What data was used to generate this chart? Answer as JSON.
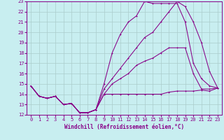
{
  "xlabel": "Windchill (Refroidissement éolien,°C)",
  "background_color": "#c8eef0",
  "grid_color": "#aacccc",
  "line_color": "#880088",
  "xlim": [
    -0.5,
    23.5
  ],
  "ylim": [
    12,
    23
  ],
  "xticks": [
    0,
    1,
    2,
    3,
    4,
    5,
    6,
    7,
    8,
    9,
    10,
    11,
    12,
    13,
    14,
    15,
    16,
    17,
    18,
    19,
    20,
    21,
    22,
    23
  ],
  "yticks": [
    12,
    13,
    14,
    15,
    16,
    17,
    18,
    19,
    20,
    21,
    22,
    23
  ],
  "line1_x": [
    0,
    1,
    2,
    3,
    4,
    5,
    6,
    7,
    8,
    9,
    10,
    11,
    12,
    13,
    14,
    15,
    16,
    17,
    18,
    19,
    20,
    21,
    22,
    23
  ],
  "line1_y": [
    14.8,
    13.8,
    13.6,
    13.8,
    13.0,
    13.1,
    12.2,
    12.2,
    12.5,
    14.0,
    14.0,
    14.0,
    14.0,
    14.0,
    14.0,
    14.0,
    14.0,
    14.2,
    14.3,
    14.3,
    14.3,
    14.4,
    14.3,
    14.6
  ],
  "line2_x": [
    0,
    1,
    2,
    3,
    4,
    5,
    6,
    7,
    8,
    9,
    10,
    11,
    12,
    13,
    14,
    15,
    16,
    17,
    18,
    19,
    20,
    21,
    22,
    23
  ],
  "line2_y": [
    14.8,
    13.8,
    13.6,
    13.8,
    13.0,
    13.1,
    12.2,
    12.2,
    12.5,
    15.0,
    18.0,
    19.8,
    21.0,
    21.6,
    23.0,
    22.8,
    22.8,
    22.8,
    22.8,
    21.0,
    17.0,
    15.5,
    14.8,
    14.6
  ],
  "line3_x": [
    0,
    1,
    2,
    3,
    4,
    5,
    6,
    7,
    8,
    9,
    10,
    11,
    12,
    13,
    14,
    15,
    16,
    17,
    18,
    19,
    20,
    21,
    22,
    23
  ],
  "line3_y": [
    14.8,
    13.8,
    13.6,
    13.8,
    13.0,
    13.1,
    12.2,
    12.2,
    12.5,
    14.5,
    15.5,
    16.5,
    17.5,
    18.5,
    19.5,
    20.0,
    21.0,
    22.0,
    23.0,
    22.5,
    21.0,
    19.0,
    16.2,
    14.6
  ],
  "line4_x": [
    0,
    1,
    2,
    3,
    4,
    5,
    6,
    7,
    8,
    9,
    10,
    11,
    12,
    13,
    14,
    15,
    16,
    17,
    18,
    19,
    20,
    21,
    22,
    23
  ],
  "line4_y": [
    14.8,
    13.8,
    13.6,
    13.8,
    13.0,
    13.1,
    12.2,
    12.2,
    12.5,
    14.0,
    15.0,
    15.5,
    16.0,
    16.8,
    17.2,
    17.5,
    18.0,
    18.5,
    18.5,
    18.5,
    16.0,
    14.5,
    14.5,
    14.6
  ]
}
